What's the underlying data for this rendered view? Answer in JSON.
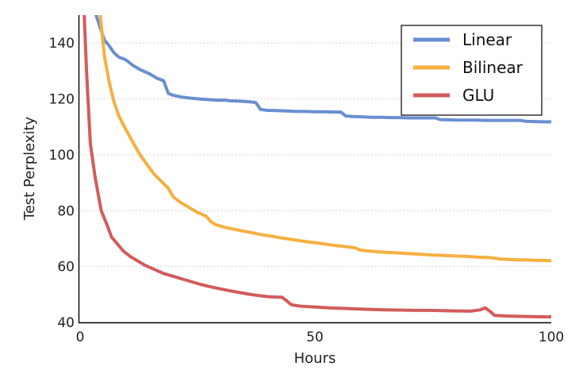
{
  "chart_data": {
    "type": "line",
    "title": "",
    "xlabel": "Hours",
    "ylabel": "Test Perplexity",
    "xlim": [
      0,
      100
    ],
    "ylim": [
      40,
      150
    ],
    "xticks": [
      0,
      50,
      100
    ],
    "yticks": [
      40,
      60,
      80,
      100,
      120,
      140
    ],
    "grid": "horizontal dotted",
    "legend_position": "top-right",
    "series": [
      {
        "name": "Linear",
        "color": "#6a8fcf",
        "points": [
          [
            3.7,
            150
          ],
          [
            4.5,
            146
          ],
          [
            5.5,
            141
          ],
          [
            6.5,
            139
          ],
          [
            7.5,
            136.5
          ],
          [
            8.5,
            135
          ],
          [
            10,
            134
          ],
          [
            11.5,
            132
          ],
          [
            13,
            130.5
          ],
          [
            15,
            129
          ],
          [
            16.5,
            127.5
          ],
          [
            18,
            126.5
          ],
          [
            19,
            122
          ],
          [
            20,
            121.3
          ],
          [
            22,
            120.6
          ],
          [
            24,
            120.2
          ],
          [
            26,
            119.9
          ],
          [
            28,
            119.7
          ],
          [
            29.5,
            119.5
          ],
          [
            31,
            119.6
          ],
          [
            32,
            119.3
          ],
          [
            34,
            119.2
          ],
          [
            36,
            119
          ],
          [
            37.5,
            118.7
          ],
          [
            38.5,
            116.2
          ],
          [
            40,
            115.9
          ],
          [
            42,
            115.8
          ],
          [
            44,
            115.7
          ],
          [
            46,
            115.5
          ],
          [
            48,
            115.5
          ],
          [
            50,
            115.4
          ],
          [
            52,
            115.4
          ],
          [
            54,
            115.3
          ],
          [
            55.5,
            115.3
          ],
          [
            56.5,
            113.9
          ],
          [
            58,
            113.7
          ],
          [
            60,
            113.6
          ],
          [
            62,
            113.4
          ],
          [
            64,
            113.4
          ],
          [
            66,
            113.3
          ],
          [
            68,
            113.3
          ],
          [
            70,
            113.2
          ],
          [
            72,
            113.2
          ],
          [
            74,
            113.2
          ],
          [
            75.5,
            113.2
          ],
          [
            76.5,
            112.6
          ],
          [
            78,
            112.5
          ],
          [
            80,
            112.4
          ],
          [
            82,
            112.4
          ],
          [
            84,
            112.4
          ],
          [
            86,
            112.3
          ],
          [
            88,
            112.3
          ],
          [
            90,
            112.3
          ],
          [
            92,
            112.3
          ],
          [
            93.5,
            112.3
          ],
          [
            94.5,
            112
          ],
          [
            96,
            111.9
          ],
          [
            98,
            111.8
          ],
          [
            100,
            111.8
          ]
        ]
      },
      {
        "name": "Bilinear",
        "color": "#f4b040",
        "points": [
          [
            4.6,
            150
          ],
          [
            5.5,
            135
          ],
          [
            6.5,
            126
          ],
          [
            7.5,
            119
          ],
          [
            8.5,
            114
          ],
          [
            10,
            109
          ],
          [
            11.5,
            104.5
          ],
          [
            13,
            100
          ],
          [
            14.5,
            96.5
          ],
          [
            16,
            93
          ],
          [
            17.5,
            90.5
          ],
          [
            19,
            88
          ],
          [
            20,
            85
          ],
          [
            21.5,
            83
          ],
          [
            23,
            81.5
          ],
          [
            25,
            79.5
          ],
          [
            27,
            78
          ],
          [
            28,
            76
          ],
          [
            29,
            75
          ],
          [
            31,
            74
          ],
          [
            33,
            73.3
          ],
          [
            35,
            72.6
          ],
          [
            37,
            72
          ],
          [
            39,
            71.3
          ],
          [
            41,
            70.8
          ],
          [
            43,
            70.2
          ],
          [
            45,
            69.7
          ],
          [
            47,
            69.2
          ],
          [
            49,
            68.7
          ],
          [
            51,
            68.3
          ],
          [
            53,
            67.8
          ],
          [
            55,
            67.4
          ],
          [
            57,
            67
          ],
          [
            58.5,
            66.7
          ],
          [
            59.5,
            65.9
          ],
          [
            61,
            65.6
          ],
          [
            63,
            65.3
          ],
          [
            65,
            65.1
          ],
          [
            67,
            64.9
          ],
          [
            69,
            64.7
          ],
          [
            71,
            64.5
          ],
          [
            73,
            64.3
          ],
          [
            75,
            64.1
          ],
          [
            77,
            64
          ],
          [
            79,
            63.8
          ],
          [
            81,
            63.7
          ],
          [
            83,
            63.5
          ],
          [
            85,
            63.3
          ],
          [
            87,
            63.2
          ],
          [
            88,
            63
          ],
          [
            89,
            62.7
          ],
          [
            91,
            62.5
          ],
          [
            93,
            62.4
          ],
          [
            95,
            62.3
          ],
          [
            97,
            62.2
          ],
          [
            100,
            62.1
          ]
        ]
      },
      {
        "name": "GLU",
        "color": "#d25c5c",
        "points": [
          [
            1.2,
            150
          ],
          [
            1.7,
            130
          ],
          [
            2.5,
            104
          ],
          [
            3.5,
            92
          ],
          [
            4.8,
            80
          ],
          [
            6,
            75
          ],
          [
            7,
            70.5
          ],
          [
            8,
            68.5
          ],
          [
            9.5,
            65.5
          ],
          [
            11,
            63.5
          ],
          [
            12.5,
            62
          ],
          [
            14,
            60.5
          ],
          [
            16,
            59
          ],
          [
            18,
            57.5
          ],
          [
            20,
            56.5
          ],
          [
            22,
            55.5
          ],
          [
            24,
            54.5
          ],
          [
            26,
            53.5
          ],
          [
            28,
            52.7
          ],
          [
            30,
            52
          ],
          [
            32,
            51.3
          ],
          [
            34,
            50.7
          ],
          [
            36,
            50.1
          ],
          [
            38,
            49.6
          ],
          [
            40,
            49.2
          ],
          [
            42,
            49
          ],
          [
            43,
            49
          ],
          [
            44,
            47.8
          ],
          [
            45,
            46.3
          ],
          [
            47,
            45.8
          ],
          [
            50,
            45.5
          ],
          [
            53,
            45.2
          ],
          [
            56,
            45
          ],
          [
            59,
            44.8
          ],
          [
            62,
            44.6
          ],
          [
            65,
            44.5
          ],
          [
            68,
            44.4
          ],
          [
            71,
            44.3
          ],
          [
            74,
            44.3
          ],
          [
            77,
            44.2
          ],
          [
            80,
            44.1
          ],
          [
            83,
            44
          ],
          [
            85,
            44.5
          ],
          [
            86,
            45.2
          ],
          [
            87,
            44
          ],
          [
            88,
            42.5
          ],
          [
            90,
            42.3
          ],
          [
            92,
            42.2
          ],
          [
            95,
            42.1
          ],
          [
            98,
            42
          ],
          [
            100,
            42
          ]
        ]
      }
    ]
  }
}
